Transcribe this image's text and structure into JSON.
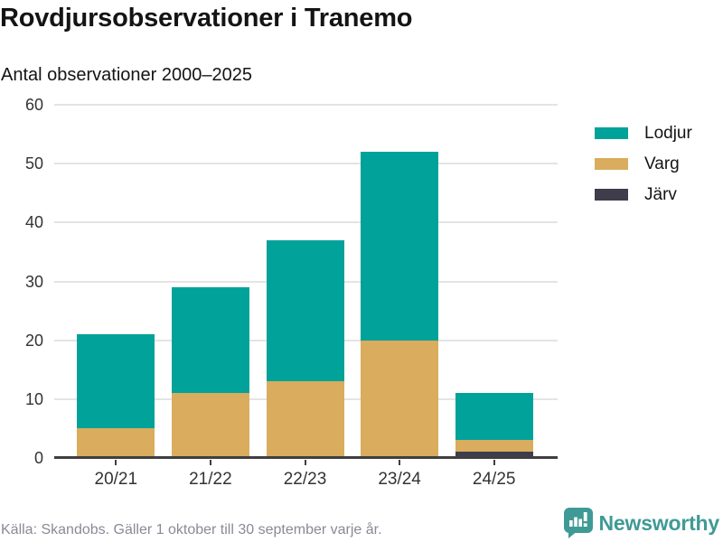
{
  "header": {
    "title": "Rovdjursobservationer i Tranemo",
    "subtitle": "Antal observationer 2000–2025"
  },
  "chart_data": {
    "type": "bar",
    "stacked": true,
    "title": "Rovdjursobservationer i Tranemo",
    "subtitle": "Antal observationer 2000–2025",
    "categories": [
      "20/21",
      "21/22",
      "22/23",
      "23/24",
      "24/25"
    ],
    "series": [
      {
        "name": "Lodjur",
        "color": "#00a29a",
        "values": [
          16,
          18,
          24,
          32,
          8
        ]
      },
      {
        "name": "Varg",
        "color": "#d9ac5e",
        "values": [
          5,
          11,
          13,
          20,
          2
        ]
      },
      {
        "name": "Järv",
        "color": "#3f3c4c",
        "values": [
          0,
          0,
          0,
          0,
          1
        ]
      }
    ],
    "stack_order_bottom_to_top": [
      "Järv",
      "Varg",
      "Lodjur"
    ],
    "totals": [
      21,
      29,
      37,
      52,
      11
    ],
    "xlabel": "",
    "ylabel": "",
    "ylim": [
      0,
      60
    ],
    "y_ticks": [
      0,
      10,
      20,
      30,
      40,
      50,
      60
    ],
    "grid": "horizontal",
    "legend_position": "right"
  },
  "footer": {
    "source": "Källa: Skandobs. Gäller 1 oktober till 30 september varje år."
  },
  "branding": {
    "name": "Newsworthy",
    "logo_icon": "bar-chart-speech-bubble-icon",
    "color": "#3f9a96"
  },
  "colors": {
    "axis": "#3f3f3f",
    "gridline": "#e4e4e4",
    "tick_text": "#333333",
    "heading_text": "#141414",
    "muted_text": "#8a8a96"
  }
}
